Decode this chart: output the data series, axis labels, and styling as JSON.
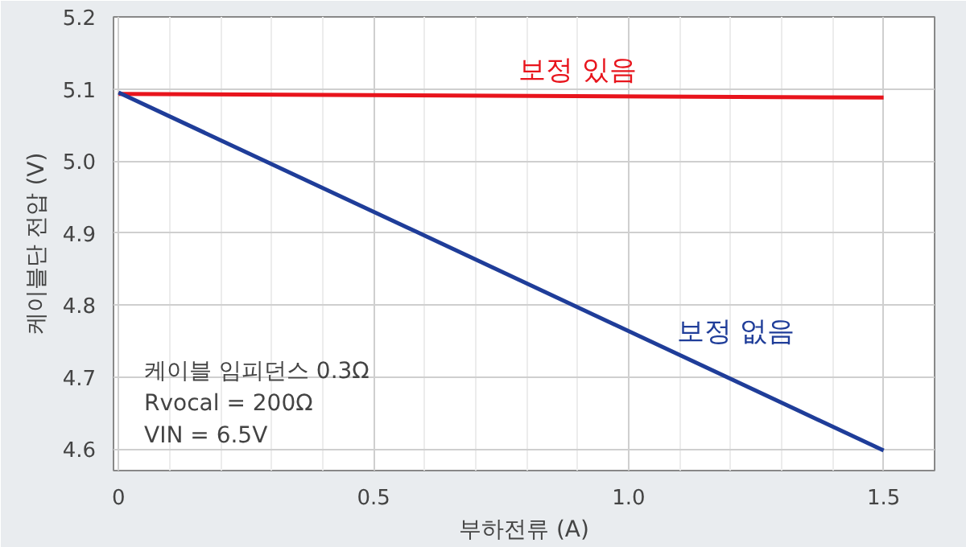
{
  "chart_data": {
    "type": "line",
    "xlabel": "부하전류 (A)",
    "ylabel": "케이블단 전압 (V)",
    "x": [
      0,
      1.5
    ],
    "series": [
      {
        "name": "보정 있음",
        "color": "#e8141c",
        "values": [
          5.093,
          5.088
        ]
      },
      {
        "name": "보정 없음",
        "color": "#1f3d99",
        "values": [
          5.095,
          4.598
        ]
      }
    ],
    "xlim": [
      -0.01,
      1.6
    ],
    "ylim": [
      4.57,
      5.2
    ],
    "xticks": [
      {
        "value": 0,
        "label": "0"
      },
      0.5,
      {
        "value": 1,
        "label": "1.0"
      },
      1.5
    ],
    "yticks": [
      4.6,
      4.7,
      4.8,
      4.9,
      {
        "value": 5,
        "label": "5.0"
      },
      5.1,
      5.2
    ],
    "grid": true,
    "marker": "none",
    "line_style": "solid",
    "annotations": [
      "케이블 임피던스 0.3Ω\nRvocal = 200Ω\nVIN = 6.5V"
    ]
  }
}
